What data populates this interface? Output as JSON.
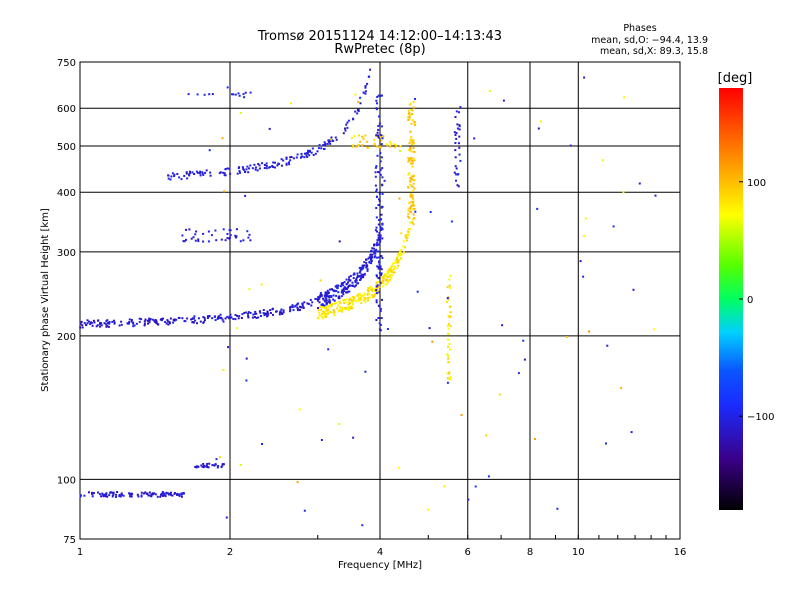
{
  "chart_data": {
    "type": "scatter",
    "title": "Tromsø 20151124 14:12:00–14:13:43",
    "subtitle": "RwPretec (8p)",
    "stats": {
      "heading": "Phases",
      "line_o": "mean, sd,O: −94.4, 13.9",
      "line_x": "mean, sd,X:  89.3, 15.8"
    },
    "xlabel": "Frequency [MHz]",
    "ylabel": "Stationary phase Virtual Height [km]",
    "x_scale": "log",
    "y_scale": "log",
    "xlim": [
      1,
      16
    ],
    "ylim": [
      75,
      750
    ],
    "x_ticks": [
      {
        "v": 1,
        "label": "1"
      },
      {
        "v": 2,
        "label": "2"
      },
      {
        "v": 4,
        "label": "4"
      },
      {
        "v": 6,
        "label": "6"
      },
      {
        "v": 8,
        "label": "8"
      },
      {
        "v": 10,
        "label": "10"
      },
      {
        "v": 16,
        "label": "16"
      }
    ],
    "y_ticks": [
      {
        "v": 75,
        "label": "75"
      },
      {
        "v": 100,
        "label": "100"
      },
      {
        "v": 200,
        "label": "200"
      },
      {
        "v": 300,
        "label": "300"
      },
      {
        "v": 400,
        "label": "400"
      },
      {
        "v": 500,
        "label": "500"
      },
      {
        "v": 600,
        "label": "600"
      },
      {
        "v": 750,
        "label": "750"
      }
    ],
    "grid": true,
    "colorbar": {
      "label": "[deg]",
      "range": [
        -180,
        180
      ],
      "ticks": [
        {
          "v": 100,
          "label": "100"
        },
        {
          "v": 0,
          "label": "0"
        },
        {
          "v": -100,
          "label": "−100"
        }
      ]
    },
    "segments": [
      {
        "name": "E",
        "f0": 1.0,
        "f1": 1.62,
        "h": "flat",
        "h0": 93,
        "p": -110,
        "n": 110,
        "jit": 0.012
      },
      {
        "name": "E-spot",
        "f0": 1.7,
        "f1": 1.95,
        "h": "flat",
        "h0": 107,
        "p": -110,
        "n": 28,
        "jit": 0.01
      },
      {
        "name": "F1-base",
        "f0": 1.0,
        "f1": 3.0,
        "h": "curve",
        "h0": 210,
        "fc": 4.3,
        "a": 0.32,
        "p": -110,
        "n": 230,
        "jit": 0.018
      },
      {
        "name": "F1-O",
        "f0": 3.0,
        "f1": 4.05,
        "h": "curve",
        "h0": 210,
        "fc": 4.3,
        "a": 0.32,
        "p": -105,
        "n": 220,
        "jit": 0.035
      },
      {
        "name": "F1-X",
        "f0": 3.0,
        "f1": 4.6,
        "h": "curve",
        "h0": 205,
        "fc": 4.85,
        "a": 0.32,
        "p": 82,
        "n": 260,
        "jit": 0.03
      },
      {
        "name": "F2-multi",
        "f0": 1.5,
        "f1": 3.9,
        "h": "rise",
        "h0": 420,
        "fc": 4.05,
        "a": 0.35,
        "p": -105,
        "n": 170,
        "jit": 0.018
      },
      {
        "name": "F2-X-top",
        "f0": 3.5,
        "f1": 4.4,
        "h": "flat",
        "h0": 510,
        "p": 90,
        "n": 40,
        "jit": 0.035
      },
      {
        "name": "O-vertical",
        "f0": 3.92,
        "f1": 4.05,
        "h": "vert",
        "h0": 205,
        "h1": 640,
        "p": -105,
        "n": 110,
        "jit": 0.0
      },
      {
        "name": "X-vertical",
        "f0": 4.55,
        "f1": 4.7,
        "h": "vert",
        "h0": 340,
        "h1": 620,
        "p": 95,
        "n": 110,
        "jit": 0.0
      },
      {
        "name": "triple",
        "f0": 1.6,
        "f1": 2.2,
        "h": "flat",
        "h0": 325,
        "p": -105,
        "n": 40,
        "jit": 0.03
      },
      {
        "name": "quad",
        "f0": 1.65,
        "f1": 2.3,
        "h": "flat",
        "h0": 640,
        "p": -100,
        "n": 14,
        "jit": 0.012
      },
      {
        "name": "vert-55",
        "f0": 5.45,
        "f1": 5.55,
        "h": "vert",
        "h0": 160,
        "h1": 280,
        "p": 80,
        "n": 40,
        "jit": 0.0
      },
      {
        "name": "vert-57",
        "f0": 5.65,
        "f1": 5.8,
        "h": "vert",
        "h0": 400,
        "h1": 620,
        "p": -110,
        "n": 30,
        "jit": 0.0
      }
    ]
  }
}
